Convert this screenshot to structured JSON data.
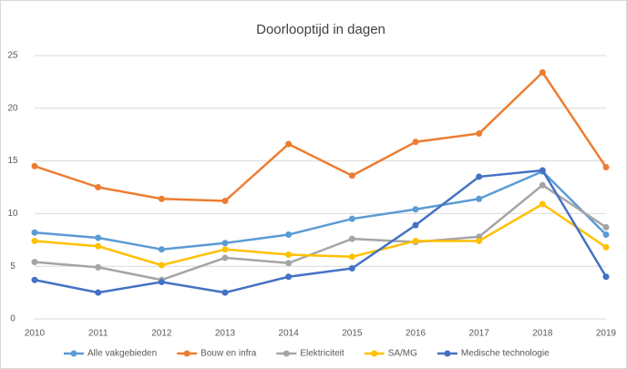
{
  "chart_data": {
    "type": "line",
    "title": "Doorlooptijd in dagen",
    "categories": [
      "2010",
      "2011",
      "2012",
      "2013",
      "2014",
      "2015",
      "2016",
      "2017",
      "2018",
      "2019"
    ],
    "series": [
      {
        "name": "Alle vakgebieden",
        "color": "#5b9bd5",
        "values": [
          8.2,
          7.7,
          6.6,
          7.2,
          8.0,
          9.5,
          10.4,
          11.4,
          14.0,
          8.0
        ]
      },
      {
        "name": "Bouw en infra",
        "color": "#ed7d31",
        "values": [
          14.5,
          12.5,
          11.4,
          11.2,
          16.6,
          13.6,
          16.8,
          17.6,
          23.4,
          14.4
        ]
      },
      {
        "name": "Elektriciteit",
        "color": "#a5a5a5",
        "values": [
          5.4,
          4.9,
          3.7,
          5.8,
          5.3,
          7.6,
          7.3,
          7.8,
          12.7,
          8.7
        ]
      },
      {
        "name": "SA/MG",
        "color": "#ffc000",
        "values": [
          7.4,
          6.9,
          5.1,
          6.6,
          6.1,
          5.9,
          7.4,
          7.4,
          10.9,
          6.8
        ]
      },
      {
        "name": "Medische technologie",
        "color": "#4472c4",
        "values": [
          3.7,
          2.5,
          3.5,
          2.5,
          4.0,
          4.8,
          8.9,
          13.5,
          14.1,
          4.0
        ]
      }
    ],
    "ylim": [
      0,
      25
    ],
    "yticks": [
      0,
      5,
      10,
      15,
      20,
      25
    ],
    "grid": true,
    "legend": "bottom"
  }
}
